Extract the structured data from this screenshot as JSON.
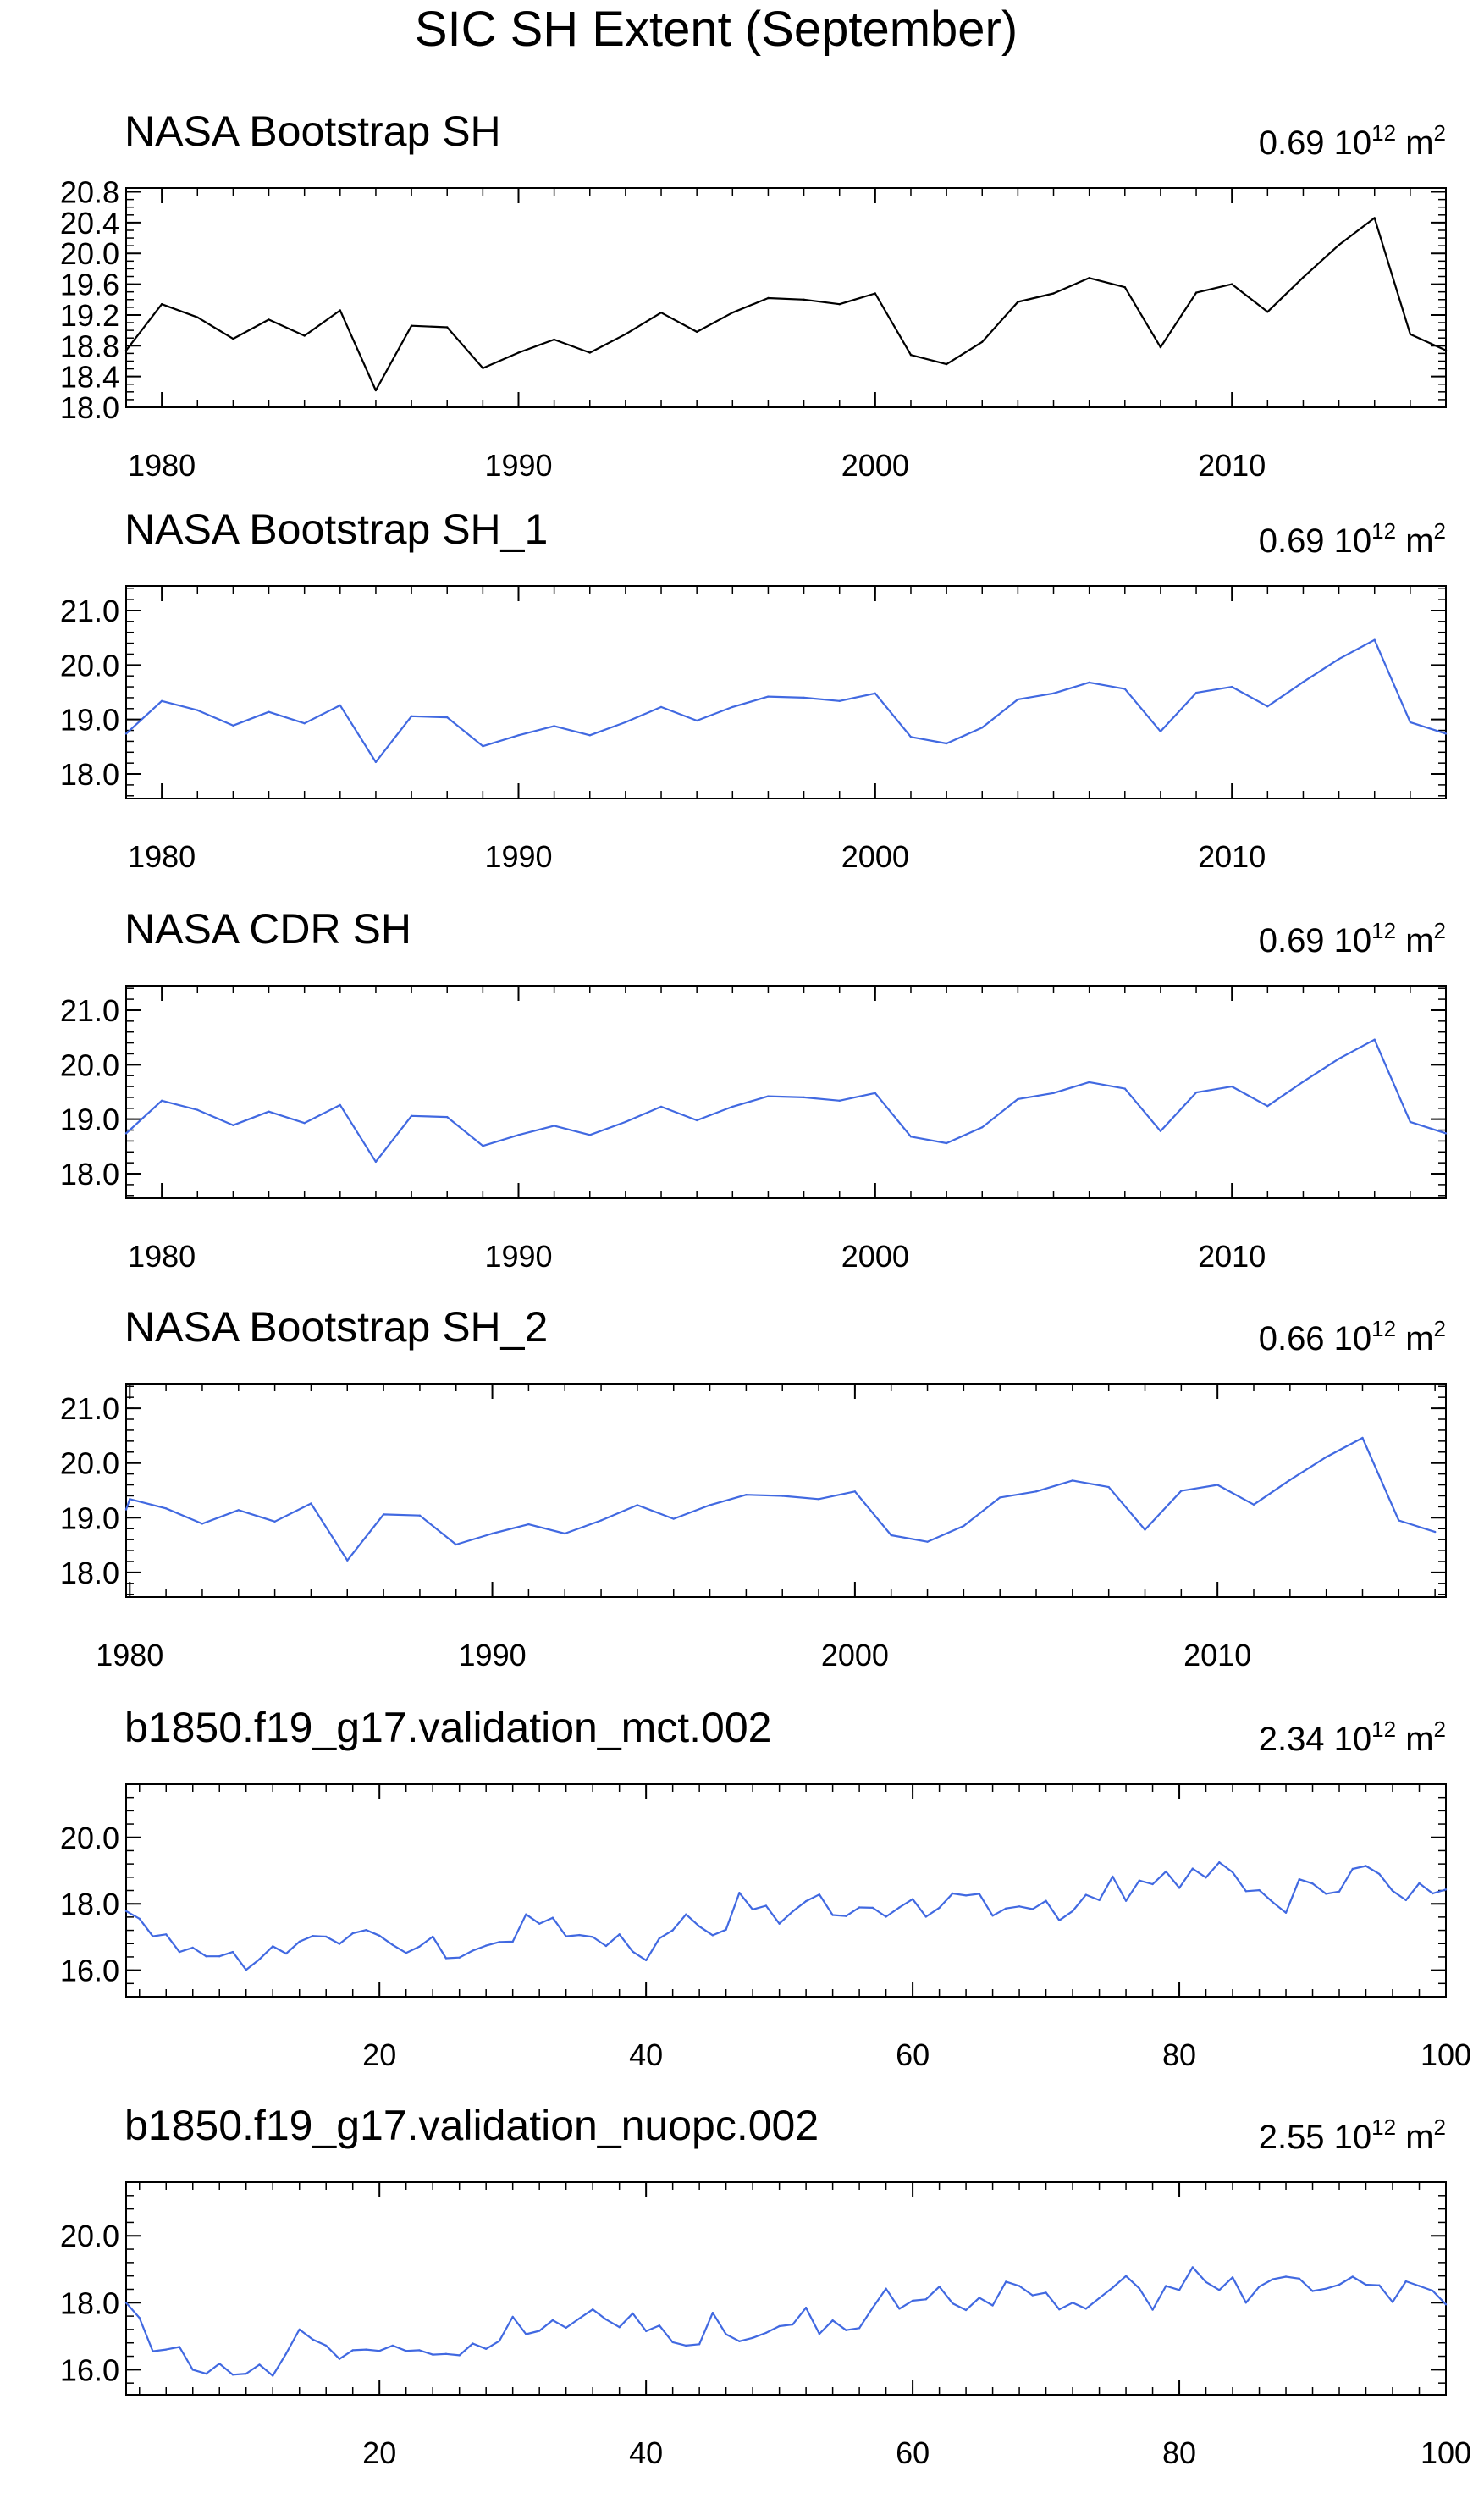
{
  "figure_title": "SIC SH Extent (September)",
  "chart_data": [
    {
      "type": "line",
      "title": "NASA Bootstrap SH",
      "note": "0.69 10",
      "note_sup": "12",
      "note_unit": " m",
      "note_unit_sup": "2",
      "color": "#000000",
      "xlim": [
        1979,
        2016
      ],
      "xticks": [
        1980,
        1990,
        2000,
        2010
      ],
      "xtick_labels": [
        "1980",
        "1990",
        "2000",
        "2010"
      ],
      "ylim": [
        18.0,
        20.85
      ],
      "yticks": [
        18.0,
        18.4,
        18.8,
        19.2,
        19.6,
        20.0,
        20.4,
        20.8
      ],
      "ytick_labels": [
        "18.0",
        "18.4",
        "18.8",
        "19.2",
        "19.6",
        "20.0",
        "20.4",
        "20.8"
      ],
      "yminor": 0.1,
      "x": [
        1979,
        1980,
        1981,
        1982,
        1983,
        1984,
        1985,
        1986,
        1987,
        1988,
        1989,
        1990,
        1991,
        1992,
        1993,
        1994,
        1995,
        1996,
        1997,
        1998,
        1999,
        2000,
        2001,
        2002,
        2003,
        2004,
        2005,
        2006,
        2007,
        2008,
        2009,
        2010,
        2011,
        2012,
        2013,
        2014,
        2015,
        2016
      ],
      "y": [
        18.74,
        19.34,
        19.17,
        18.89,
        19.14,
        18.93,
        19.26,
        18.22,
        19.06,
        19.04,
        18.51,
        18.71,
        18.88,
        18.71,
        18.95,
        19.23,
        18.98,
        19.23,
        19.42,
        19.4,
        19.34,
        19.48,
        18.68,
        18.56,
        18.85,
        19.37,
        19.48,
        19.68,
        19.56,
        18.78,
        19.49,
        19.6,
        19.24,
        19.69,
        20.11,
        20.46,
        18.95,
        18.74
      ]
    },
    {
      "type": "line",
      "title": "NASA Bootstrap SH_1",
      "note": "0.69 10",
      "note_sup": "12",
      "note_unit": " m",
      "note_unit_sup": "2",
      "color": "#4169e1",
      "xlim": [
        1979,
        2016
      ],
      "xticks": [
        1980,
        1990,
        2000,
        2010
      ],
      "xtick_labels": [
        "1980",
        "1990",
        "2000",
        "2010"
      ],
      "ylim": [
        17.55,
        21.45
      ],
      "yticks": [
        18.0,
        19.0,
        20.0,
        21.0
      ],
      "ytick_labels": [
        "18.0",
        "19.0",
        "20.0",
        "21.0"
      ],
      "yminor": 0.2,
      "x": [
        1979,
        1980,
        1981,
        1982,
        1983,
        1984,
        1985,
        1986,
        1987,
        1988,
        1989,
        1990,
        1991,
        1992,
        1993,
        1994,
        1995,
        1996,
        1997,
        1998,
        1999,
        2000,
        2001,
        2002,
        2003,
        2004,
        2005,
        2006,
        2007,
        2008,
        2009,
        2010,
        2011,
        2012,
        2013,
        2014,
        2015,
        2016
      ],
      "y": [
        18.74,
        19.34,
        19.17,
        18.89,
        19.14,
        18.93,
        19.26,
        18.22,
        19.06,
        19.04,
        18.51,
        18.71,
        18.88,
        18.71,
        18.95,
        19.23,
        18.98,
        19.23,
        19.42,
        19.4,
        19.34,
        19.48,
        18.68,
        18.56,
        18.85,
        19.37,
        19.48,
        19.68,
        19.56,
        18.78,
        19.49,
        19.6,
        19.24,
        19.69,
        20.11,
        20.46,
        18.95,
        18.74
      ]
    },
    {
      "type": "line",
      "title": "NASA CDR SH",
      "note": "0.69 10",
      "note_sup": "12",
      "note_unit": " m",
      "note_unit_sup": "2",
      "color": "#4169e1",
      "xlim": [
        1979,
        2016
      ],
      "xticks": [
        1980,
        1990,
        2000,
        2010
      ],
      "xtick_labels": [
        "1980",
        "1990",
        "2000",
        "2010"
      ],
      "ylim": [
        17.55,
        21.45
      ],
      "yticks": [
        18.0,
        19.0,
        20.0,
        21.0
      ],
      "ytick_labels": [
        "18.0",
        "19.0",
        "20.0",
        "21.0"
      ],
      "yminor": 0.2,
      "x": [
        1979,
        1980,
        1981,
        1982,
        1983,
        1984,
        1985,
        1986,
        1987,
        1988,
        1989,
        1990,
        1991,
        1992,
        1993,
        1994,
        1995,
        1996,
        1997,
        1998,
        1999,
        2000,
        2001,
        2002,
        2003,
        2004,
        2005,
        2006,
        2007,
        2008,
        2009,
        2010,
        2011,
        2012,
        2013,
        2014,
        2015,
        2016
      ],
      "y": [
        18.74,
        19.34,
        19.17,
        18.89,
        19.14,
        18.93,
        19.26,
        18.22,
        19.06,
        19.04,
        18.51,
        18.71,
        18.88,
        18.71,
        18.95,
        19.23,
        18.98,
        19.23,
        19.42,
        19.4,
        19.34,
        19.48,
        18.68,
        18.56,
        18.85,
        19.37,
        19.48,
        19.68,
        19.56,
        18.78,
        19.49,
        19.6,
        19.24,
        19.69,
        20.11,
        20.46,
        18.95,
        18.74
      ]
    },
    {
      "type": "line",
      "title": "NASA Bootstrap SH_2",
      "note": "0.66 10",
      "note_sup": "12",
      "note_unit": " m",
      "note_unit_sup": "2",
      "color": "#4169e1",
      "xlim": [
        1979.9,
        2016.3
      ],
      "xticks": [
        1980,
        1990,
        2000,
        2010
      ],
      "xtick_labels": [
        "1980",
        "1990",
        "2000",
        "2010"
      ],
      "ylim": [
        17.55,
        21.45
      ],
      "yticks": [
        18.0,
        19.0,
        20.0,
        21.0
      ],
      "ytick_labels": [
        "18.0",
        "19.0",
        "20.0",
        "21.0"
      ],
      "yminor": 0.2,
      "x": [
        1979.9,
        1980,
        1981,
        1982,
        1983,
        1984,
        1985,
        1986,
        1987,
        1988,
        1989,
        1990,
        1991,
        1992,
        1993,
        1994,
        1995,
        1996,
        1997,
        1998,
        1999,
        2000,
        2001,
        2002,
        2003,
        2004,
        2005,
        2006,
        2007,
        2008,
        2009,
        2010,
        2011,
        2012,
        2013,
        2014,
        2015,
        2016
      ],
      "y": [
        19.15,
        19.34,
        19.17,
        18.89,
        19.14,
        18.93,
        19.26,
        18.22,
        19.06,
        19.04,
        18.51,
        18.71,
        18.88,
        18.71,
        18.95,
        19.23,
        18.98,
        19.23,
        19.42,
        19.4,
        19.34,
        19.48,
        18.68,
        18.56,
        18.85,
        19.37,
        19.48,
        19.68,
        19.56,
        18.78,
        19.49,
        19.6,
        19.24,
        19.69,
        20.11,
        20.46,
        18.95,
        18.74
      ]
    },
    {
      "type": "line",
      "title": "b1850.f19_g17.validation_mct.002",
      "note": "2.34 10",
      "note_sup": "12",
      "note_unit": " m",
      "note_unit_sup": "2",
      "color": "#4169e1",
      "xlim": [
        1,
        100
      ],
      "xticks": [
        20,
        40,
        60,
        80,
        100
      ],
      "xtick_labels": [
        "20",
        "40",
        "60",
        "80",
        "100"
      ],
      "ylim": [
        15.2,
        21.6
      ],
      "yticks": [
        16.0,
        18.0,
        20.0
      ],
      "ytick_labels": [
        "16.0",
        "18.0",
        "20.0"
      ],
      "yminor": 0.4,
      "x": [
        1,
        2,
        3,
        4,
        5,
        6,
        7,
        8,
        9,
        10,
        11,
        12,
        13,
        14,
        15,
        16,
        17,
        18,
        19,
        20,
        21,
        22,
        23,
        24,
        25,
        26,
        27,
        28,
        29,
        30,
        31,
        32,
        33,
        34,
        35,
        36,
        37,
        38,
        39,
        40,
        41,
        42,
        43,
        44,
        45,
        46,
        47,
        48,
        49,
        50,
        51,
        52,
        53,
        54,
        55,
        56,
        57,
        58,
        59,
        60,
        61,
        62,
        63,
        64,
        65,
        66,
        67,
        68,
        69,
        70,
        71,
        72,
        73,
        74,
        75,
        76,
        77,
        78,
        79,
        80,
        81,
        82,
        83,
        84,
        85,
        86,
        87,
        88,
        89,
        90,
        91,
        92,
        93,
        94,
        95,
        96,
        97,
        98,
        99,
        100
      ],
      "y": [
        17.78,
        17.55,
        17.02,
        17.08,
        16.55,
        16.68,
        16.42,
        16.42,
        16.55,
        16.01,
        16.33,
        16.72,
        16.5,
        16.86,
        17.03,
        17.01,
        16.79,
        17.11,
        17.21,
        17.04,
        16.76,
        16.52,
        16.71,
        17.01,
        16.36,
        16.38,
        16.59,
        16.74,
        16.85,
        16.86,
        17.68,
        17.4,
        17.58,
        17.02,
        17.06,
        17.0,
        16.73,
        17.08,
        16.56,
        16.3,
        16.96,
        17.2,
        17.68,
        17.32,
        17.05,
        17.22,
        18.33,
        17.83,
        17.94,
        17.4,
        17.77,
        18.08,
        18.28,
        17.66,
        17.63,
        17.89,
        17.88,
        17.61,
        17.89,
        18.14,
        17.61,
        17.88,
        18.31,
        18.25,
        18.3,
        17.64,
        17.86,
        17.92,
        17.84,
        18.09,
        17.5,
        17.78,
        18.27,
        18.11,
        18.82,
        18.09,
        18.7,
        18.59,
        18.97,
        18.48,
        19.06,
        18.79,
        19.25,
        18.95,
        18.38,
        18.41,
        18.05,
        17.73,
        18.74,
        18.61,
        18.3,
        18.37,
        19.05,
        19.14,
        18.9,
        18.39,
        18.11,
        18.62,
        18.31,
        18.43
      ]
    },
    {
      "type": "line",
      "title": "b1850.f19_g17.validation_nuopc.002",
      "note": "2.55 10",
      "note_sup": "12",
      "note_unit": " m",
      "note_unit_sup": "2",
      "color": "#4169e1",
      "xlim": [
        1,
        100
      ],
      "xticks": [
        20,
        40,
        60,
        80,
        100
      ],
      "xtick_labels": [
        "20",
        "40",
        "60",
        "80",
        "100"
      ],
      "ylim": [
        15.25,
        21.6
      ],
      "yticks": [
        16.0,
        18.0,
        20.0
      ],
      "ytick_labels": [
        "16.0",
        "18.0",
        "20.0"
      ],
      "yminor": 0.4,
      "x": [
        1,
        2,
        3,
        4,
        5,
        6,
        7,
        8,
        9,
        10,
        11,
        12,
        13,
        14,
        15,
        16,
        17,
        18,
        19,
        20,
        21,
        22,
        23,
        24,
        25,
        26,
        27,
        28,
        29,
        30,
        31,
        32,
        33,
        34,
        35,
        36,
        37,
        38,
        39,
        40,
        41,
        42,
        43,
        44,
        45,
        46,
        47,
        48,
        49,
        50,
        51,
        52,
        53,
        54,
        55,
        56,
        57,
        58,
        59,
        60,
        61,
        62,
        63,
        64,
        65,
        66,
        67,
        68,
        69,
        70,
        71,
        72,
        73,
        74,
        75,
        76,
        77,
        78,
        79,
        80,
        81,
        82,
        83,
        84,
        85,
        86,
        87,
        88,
        89,
        90,
        91,
        92,
        93,
        94,
        95,
        96,
        97,
        98,
        99,
        100
      ],
      "y": [
        18.0,
        17.55,
        16.55,
        16.6,
        16.68,
        16.0,
        15.88,
        16.18,
        15.85,
        15.88,
        16.15,
        15.82,
        16.48,
        17.2,
        16.9,
        16.72,
        16.32,
        16.58,
        16.6,
        16.56,
        16.72,
        16.56,
        16.58,
        16.45,
        16.47,
        16.43,
        16.78,
        16.62,
        16.86,
        17.58,
        17.06,
        17.16,
        17.48,
        17.25,
        17.53,
        17.8,
        17.5,
        17.27,
        17.68,
        17.15,
        17.32,
        16.82,
        16.72,
        16.76,
        17.7,
        17.06,
        16.85,
        16.95,
        17.1,
        17.3,
        17.35,
        17.85,
        17.07,
        17.47,
        17.18,
        17.24,
        17.85,
        18.42,
        17.82,
        18.06,
        18.1,
        18.48,
        17.98,
        17.78,
        18.15,
        17.92,
        18.63,
        18.5,
        18.22,
        18.3,
        17.8,
        18.0,
        17.82,
        18.14,
        18.45,
        18.8,
        18.43,
        17.79,
        18.5,
        18.38,
        19.06,
        18.62,
        18.38,
        18.76,
        18.0,
        18.48,
        18.7,
        18.78,
        18.72,
        18.35,
        18.42,
        18.54,
        18.78,
        18.54,
        18.52,
        18.02,
        18.64,
        18.5,
        18.36,
        17.95
      ]
    }
  ]
}
